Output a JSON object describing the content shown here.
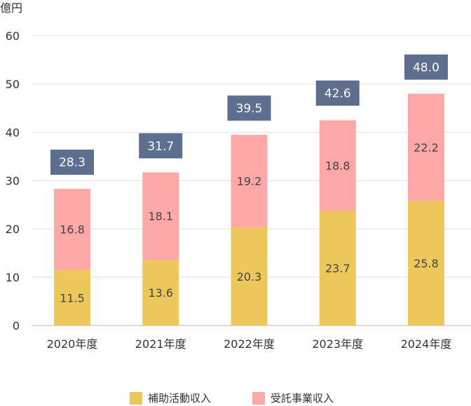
{
  "chart_data": {
    "type": "bar",
    "stacked": true,
    "title": "",
    "unit_label": "億円",
    "categories": [
      "2020年度",
      "2021年度",
      "2022年度",
      "2023年度",
      "2024年度"
    ],
    "series": [
      {
        "name": "補助活動収入",
        "color": "#ecc75a",
        "values": [
          11.5,
          13.6,
          20.3,
          23.7,
          25.8
        ]
      },
      {
        "name": "受託事業収入",
        "color": "#ffa8a8",
        "values": [
          16.8,
          18.1,
          19.2,
          18.8,
          22.2
        ]
      }
    ],
    "totals": [
      28.3,
      31.7,
      39.5,
      42.6,
      48.0
    ],
    "total_badge_color": "#5d6e8f",
    "ylim": [
      0,
      60
    ],
    "yticks": [
      0,
      10,
      20,
      30,
      40,
      50,
      60
    ],
    "grid": true,
    "legend_position": "bottom"
  }
}
